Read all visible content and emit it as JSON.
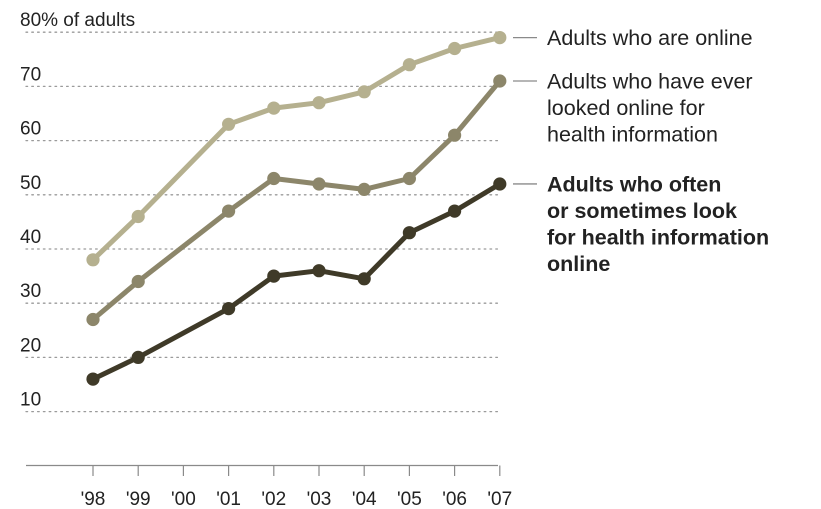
{
  "chart_data": {
    "type": "line",
    "x": [
      "'98",
      "'99",
      "'00",
      "'01",
      "'02",
      "'03",
      "'04",
      "'05",
      "'06",
      "'07"
    ],
    "ylim": [
      0,
      80
    ],
    "y_ticks": [
      "80% of adults",
      "70",
      "60",
      "50",
      "40",
      "30",
      "20",
      "10"
    ],
    "y_tick_values": [
      80,
      70,
      60,
      50,
      40,
      30,
      20,
      10
    ],
    "grid": "horizontal dotted",
    "legend_placement": "right, at line ends",
    "series": [
      {
        "name": "Adults who are online",
        "label_lines": [
          "Adults who are online"
        ],
        "bold": false,
        "color": "#b5b08f",
        "values": [
          38,
          46,
          null,
          63,
          66,
          67,
          69,
          74,
          77,
          79
        ]
      },
      {
        "name": "Adults who have ever looked online for health information",
        "label_lines": [
          "Adults who have ever",
          "looked online for",
          "health information"
        ],
        "bold": false,
        "color": "#8c866a",
        "values": [
          27,
          34,
          null,
          47,
          53,
          52,
          51,
          53,
          61,
          71
        ]
      },
      {
        "name": "Adults who often or sometimes look for health information online",
        "label_lines": [
          "Adults who often",
          "or sometimes look",
          "for health information",
          "online"
        ],
        "bold": true,
        "color": "#3f3a28",
        "values": [
          16,
          20,
          null,
          29,
          35,
          36,
          34.5,
          43,
          47,
          52
        ]
      }
    ]
  }
}
